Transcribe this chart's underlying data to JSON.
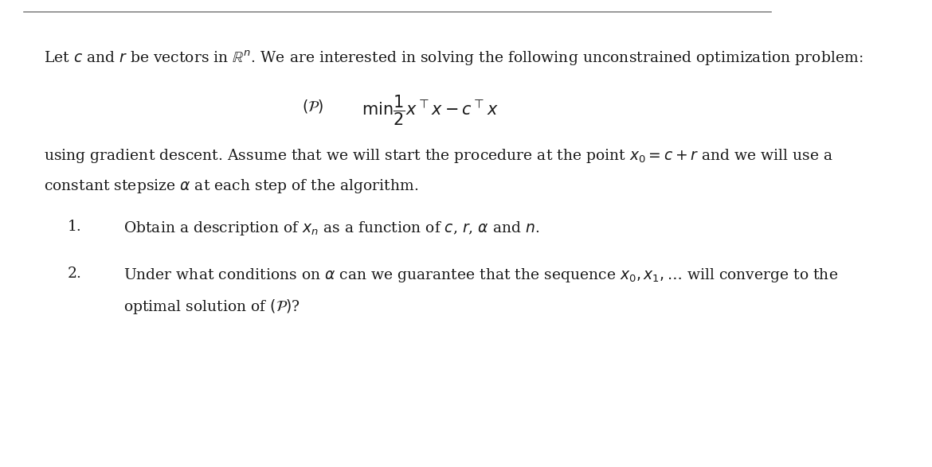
{
  "bg_color": "#ffffff",
  "border_color": "#888888",
  "line1": "Let $c$ and $r$ be vectors in $\\mathbb{R}^n$. We are interested in solving the following unconstrained optimization problem:",
  "problem_label": "$(\\mathcal{P})$",
  "problem_eq": "$\\min \\dfrac{1}{2}x^{\\top}x - c^{\\top}x$",
  "line2": "using gradient descent. Assume that we will start the procedure at the point $x_0 = c + r$ and we will use a",
  "line3": "constant stepsize $\\alpha$ at each step of the algorithm.",
  "item1_num": "1.",
  "item1_text": "Obtain a description of $x_n$ as a function of $c$, $r$, $\\alpha$ and $n$.",
  "item2_num": "2.",
  "item2_text_line1": "Under what conditions on $\\alpha$ can we guarantee that the sequence $x_0, x_1, \\ldots$ will converge to the",
  "item2_text_line2": "optimal solution of $(\\mathcal{P})$?",
  "font_size_main": 13.5,
  "font_size_eq": 15.0,
  "text_color": "#1a1a1a"
}
